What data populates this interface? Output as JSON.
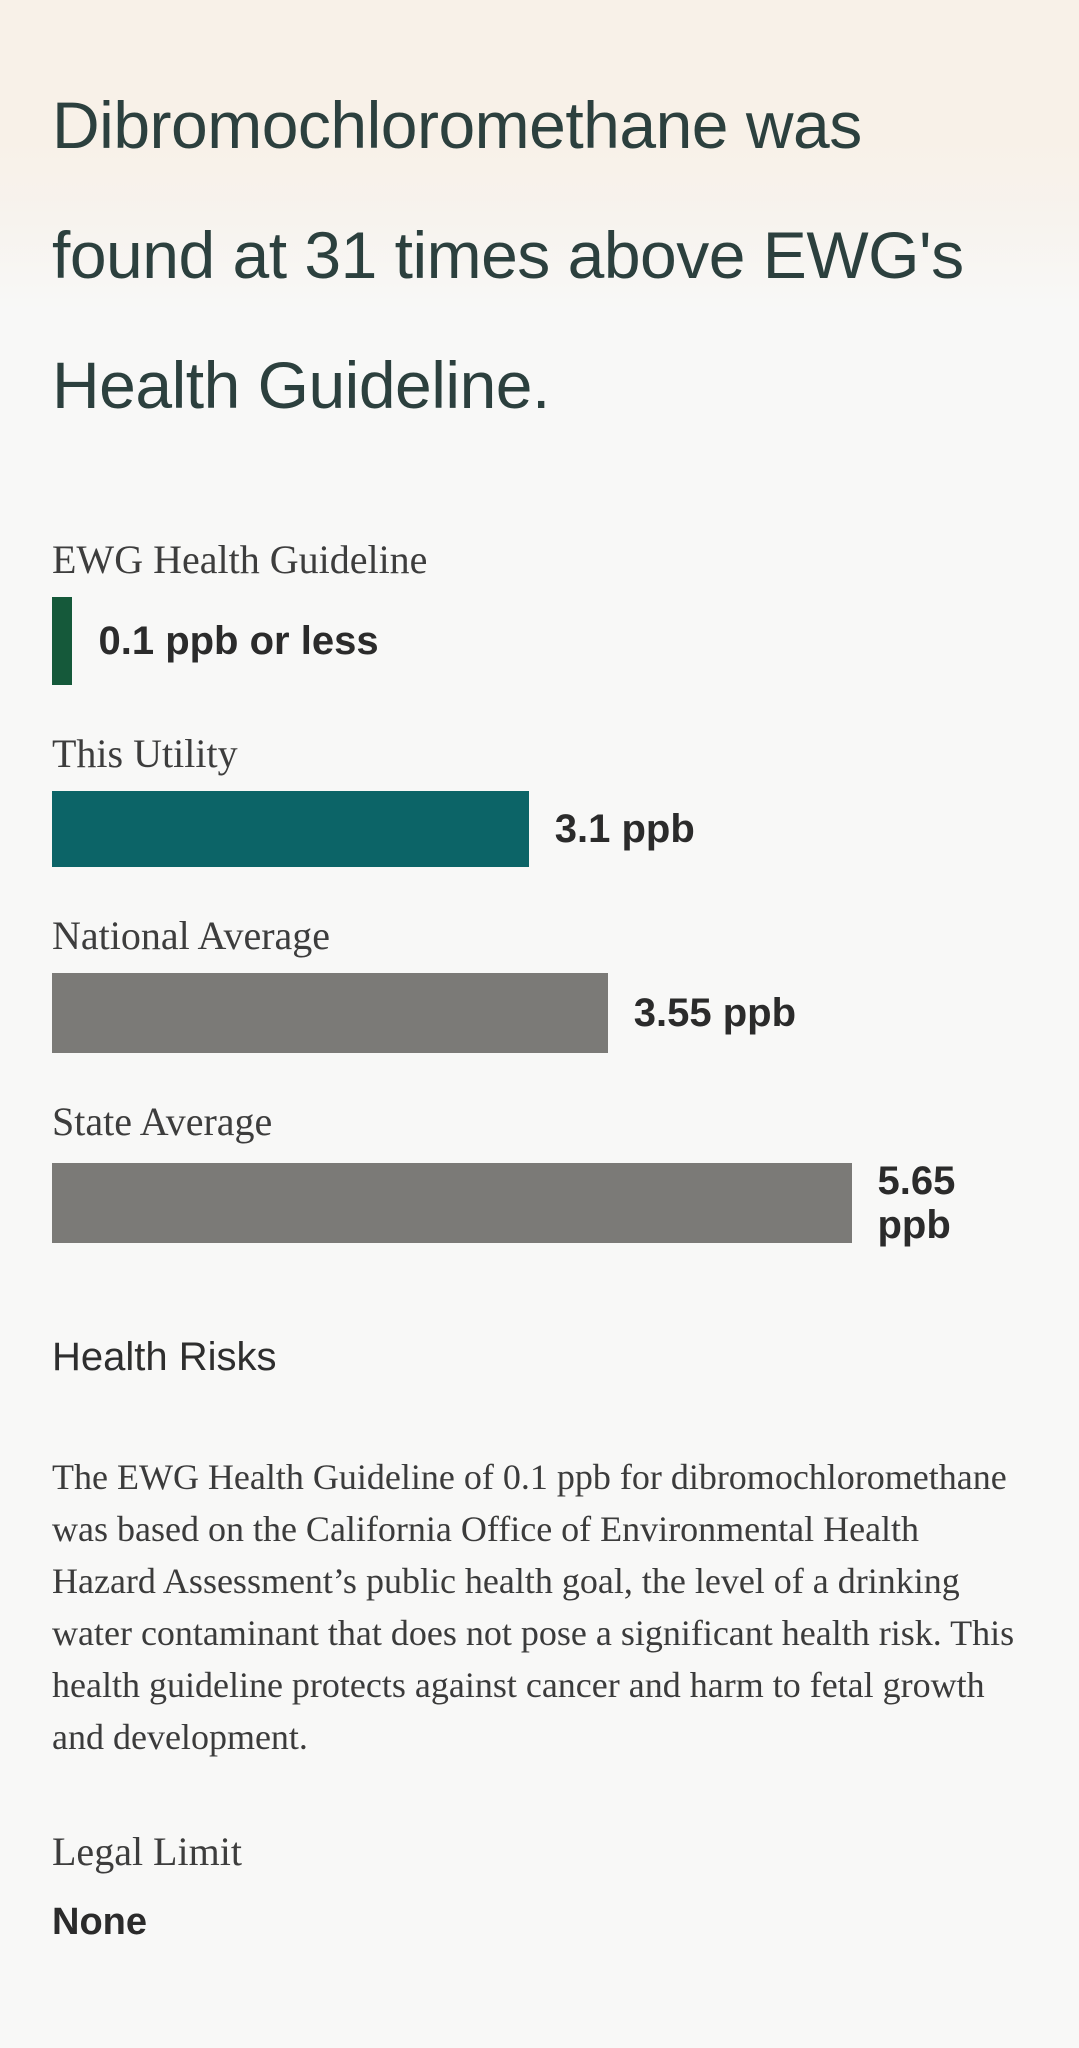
{
  "header": {
    "title": "Dibromochloromethane was found at 31 times above EWG's Health Guideline."
  },
  "chart_data": {
    "type": "bar",
    "orientation": "horizontal",
    "unit": "ppb",
    "title": "Dibromochloromethane levels vs EWG Health Guideline",
    "xlim": [
      0,
      6.9
    ],
    "grid": false,
    "rows": [
      {
        "label": "EWG Health Guideline",
        "value": 0.1,
        "value_label": "0.1 ppb or less",
        "width_pct": 2.1,
        "color": "#15593a"
      },
      {
        "label": "This Utility",
        "value": 3.1,
        "value_label": "3.1 ppb",
        "width_pct": 48.9,
        "color": "#0c6467"
      },
      {
        "label": "National Average",
        "value": 3.55,
        "value_label": "3.55 ppb",
        "width_pct": 57.0,
        "color": "#7b7a77"
      },
      {
        "label": "State Average",
        "value": 5.65,
        "value_label": "5.65 ppb",
        "width_pct": 82.0,
        "color": "#7b7a77"
      }
    ]
  },
  "health_risks": {
    "heading": "Health Risks",
    "paragraph": "The EWG Health Guideline of 0.1 ppb for dibromochloromethane was based on the California Office of Environmental Health Hazard Assessment’s public health goal, the level of a drinking water contaminant that does not pose a significant health risk. This health guideline protects against cancer and harm to fetal growth and development."
  },
  "legal_limit": {
    "label": "Legal Limit",
    "value": "None"
  },
  "colors": {
    "background_top": "#f8f1e8",
    "background_main": "#f8f8f7",
    "title_text": "#2c403e",
    "guideline_green": "#15593a",
    "utility_teal": "#0c6467",
    "average_gray": "#7b7a77",
    "value_text": "#2b2b2b",
    "label_text": "#3d3d3d"
  }
}
